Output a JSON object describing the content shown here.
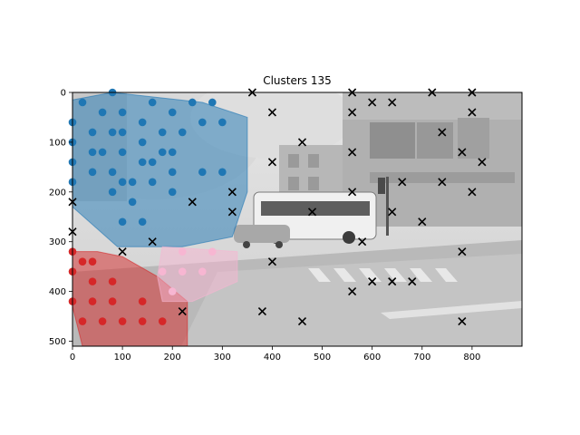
{
  "chart_data": {
    "type": "scatter",
    "title": "Clusters 135",
    "xlabel": "",
    "ylabel": "",
    "xlim": [
      0,
      900
    ],
    "ylim": [
      510,
      0
    ],
    "x_ticks": [
      0,
      100,
      200,
      300,
      400,
      500,
      600,
      700,
      800
    ],
    "y_ticks": [
      0,
      100,
      200,
      300,
      400,
      500
    ],
    "background": "grayscale street photograph (bus, buildings, crosswalk)",
    "clusters": [
      {
        "color": "#1f77b4",
        "marker": "circle",
        "hull": [
          [
            0,
            15
          ],
          [
            80,
            0
          ],
          [
            260,
            20
          ],
          [
            350,
            50
          ],
          [
            350,
            200
          ],
          [
            320,
            290
          ],
          [
            220,
            310
          ],
          [
            90,
            310
          ],
          [
            0,
            230
          ]
        ],
        "points": [
          [
            0,
            60
          ],
          [
            0,
            100
          ],
          [
            0,
            140
          ],
          [
            0,
            180
          ],
          [
            20,
            20
          ],
          [
            40,
            80
          ],
          [
            40,
            120
          ],
          [
            40,
            160
          ],
          [
            60,
            40
          ],
          [
            60,
            120
          ],
          [
            80,
            0
          ],
          [
            80,
            80
          ],
          [
            80,
            160
          ],
          [
            80,
            200
          ],
          [
            100,
            40
          ],
          [
            100,
            80
          ],
          [
            100,
            120
          ],
          [
            100,
            180
          ],
          [
            100,
            260
          ],
          [
            120,
            220
          ],
          [
            120,
            180
          ],
          [
            140,
            60
          ],
          [
            140,
            100
          ],
          [
            140,
            140
          ],
          [
            140,
            260
          ],
          [
            160,
            20
          ],
          [
            160,
            140
          ],
          [
            160,
            180
          ],
          [
            180,
            80
          ],
          [
            180,
            120
          ],
          [
            200,
            40
          ],
          [
            200,
            120
          ],
          [
            200,
            160
          ],
          [
            200,
            200
          ],
          [
            220,
            80
          ],
          [
            240,
            20
          ],
          [
            260,
            60
          ],
          [
            260,
            160
          ],
          [
            280,
            20
          ],
          [
            300,
            60
          ],
          [
            300,
            160
          ]
        ]
      },
      {
        "color": "#d62728",
        "marker": "circle",
        "hull": [
          [
            0,
            320
          ],
          [
            0,
            430
          ],
          [
            20,
            510
          ],
          [
            230,
            510
          ],
          [
            230,
            420
          ],
          [
            170,
            370
          ],
          [
            100,
            330
          ],
          [
            50,
            320
          ]
        ],
        "points": [
          [
            0,
            320
          ],
          [
            0,
            360
          ],
          [
            0,
            420
          ],
          [
            20,
            340
          ],
          [
            20,
            460
          ],
          [
            40,
            340
          ],
          [
            40,
            380
          ],
          [
            40,
            420
          ],
          [
            60,
            460
          ],
          [
            80,
            380
          ],
          [
            80,
            420
          ],
          [
            100,
            460
          ],
          [
            140,
            420
          ],
          [
            140,
            460
          ],
          [
            180,
            460
          ]
        ]
      },
      {
        "color": "#f7b6d2",
        "marker": "circle",
        "hull": [
          [
            180,
            310
          ],
          [
            330,
            320
          ],
          [
            330,
            380
          ],
          [
            240,
            420
          ],
          [
            180,
            420
          ],
          [
            170,
            370
          ]
        ],
        "points": [
          [
            180,
            360
          ],
          [
            200,
            400
          ],
          [
            220,
            320
          ],
          [
            220,
            360
          ],
          [
            260,
            360
          ],
          [
            280,
            320
          ]
        ]
      },
      {
        "color": "#000000",
        "marker": "x",
        "points": [
          [
            0,
            220
          ],
          [
            0,
            280
          ],
          [
            100,
            320
          ],
          [
            160,
            300
          ],
          [
            240,
            220
          ],
          [
            220,
            440
          ],
          [
            320,
            200
          ],
          [
            320,
            240
          ],
          [
            360,
            0
          ],
          [
            380,
            440
          ],
          [
            400,
            40
          ],
          [
            400,
            140
          ],
          [
            400,
            340
          ],
          [
            460,
            100
          ],
          [
            460,
            460
          ],
          [
            480,
            240
          ],
          [
            560,
            0
          ],
          [
            560,
            40
          ],
          [
            560,
            120
          ],
          [
            560,
            200
          ],
          [
            560,
            400
          ],
          [
            580,
            300
          ],
          [
            600,
            20
          ],
          [
            600,
            380
          ],
          [
            640,
            20
          ],
          [
            640,
            240
          ],
          [
            640,
            380
          ],
          [
            660,
            180
          ],
          [
            680,
            380
          ],
          [
            700,
            260
          ],
          [
            720,
            0
          ],
          [
            740,
            80
          ],
          [
            740,
            180
          ],
          [
            780,
            120
          ],
          [
            780,
            320
          ],
          [
            780,
            460
          ],
          [
            800,
            0
          ],
          [
            800,
            40
          ],
          [
            800,
            200
          ],
          [
            820,
            140
          ]
        ]
      }
    ]
  }
}
